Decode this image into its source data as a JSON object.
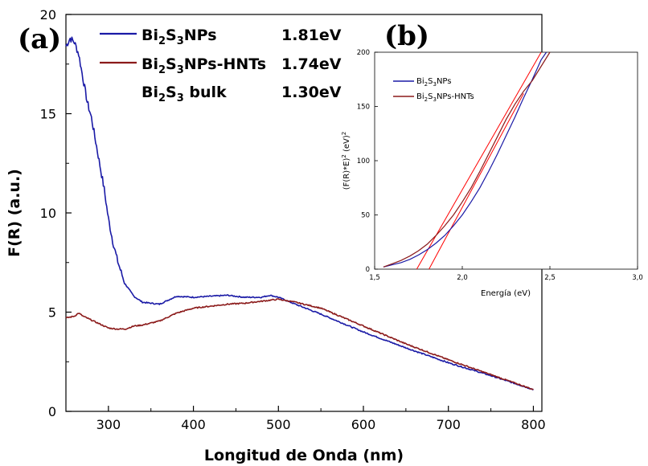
{
  "panel_a_label": "(a)",
  "panel_b_label": "(b)",
  "colors": {
    "nps": "#1a1aa6",
    "hnts": "#8b1a1a",
    "fit": "#ff0000"
  },
  "chart_data": [
    {
      "type": "line",
      "panel": "(a)",
      "xlabel": "Longitud de Onda (nm)",
      "ylabel": "F(R) (a.u.)",
      "xlim": [
        250,
        810
      ],
      "ylim": [
        0,
        20
      ],
      "xticks": [
        300,
        400,
        500,
        600,
        700,
        800
      ],
      "yticks": [
        0,
        5,
        10,
        15,
        20
      ],
      "legend_position": "top",
      "legend": [
        {
          "parts": [
            "Bi",
            "2",
            "S",
            "3",
            "NPs"
          ],
          "value": "1.81eV",
          "line": true
        },
        {
          "parts": [
            "Bi",
            "2",
            "S",
            "3",
            "NPs-HNTs"
          ],
          "value": "1.74eV",
          "line": true
        },
        {
          "parts": [
            "Bi",
            "2",
            "S",
            "3",
            " bulk"
          ],
          "value": "1.30eV",
          "line": false
        }
      ],
      "series": [
        {
          "name": "Bi2S3NPs",
          "x": [
            250,
            255,
            260,
            265,
            270,
            275,
            280,
            285,
            290,
            295,
            300,
            305,
            310,
            315,
            320,
            330,
            340,
            350,
            360,
            370,
            380,
            400,
            420,
            440,
            460,
            480,
            490,
            500,
            520,
            550,
            600,
            650,
            700,
            750,
            800
          ],
          "y": [
            18.4,
            18.8,
            18.6,
            18.0,
            16.8,
            15.6,
            14.8,
            13.6,
            12.4,
            11.2,
            9.7,
            8.6,
            7.7,
            7.0,
            6.4,
            5.8,
            5.5,
            5.45,
            5.4,
            5.6,
            5.8,
            5.75,
            5.8,
            5.85,
            5.75,
            5.75,
            5.85,
            5.75,
            5.4,
            4.9,
            4.0,
            3.2,
            2.45,
            1.8,
            1.1
          ]
        },
        {
          "name": "Bi2S3NPs-HNTs",
          "x": [
            250,
            260,
            265,
            270,
            280,
            290,
            300,
            310,
            320,
            330,
            340,
            350,
            360,
            380,
            400,
            420,
            440,
            460,
            480,
            500,
            520,
            550,
            600,
            650,
            700,
            750,
            800
          ],
          "y": [
            4.7,
            4.8,
            4.95,
            4.8,
            4.6,
            4.4,
            4.2,
            4.15,
            4.15,
            4.3,
            4.35,
            4.45,
            4.55,
            4.95,
            5.2,
            5.3,
            5.4,
            5.45,
            5.55,
            5.65,
            5.5,
            5.2,
            4.3,
            3.4,
            2.6,
            1.85,
            1.1
          ]
        }
      ]
    },
    {
      "type": "line",
      "panel": "(b)",
      "xlabel": "Energía (eV)",
      "ylabel": [
        "(F(R)*E)",
        "2",
        " (eV)",
        "2"
      ],
      "xlim": [
        1.5,
        3.0
      ],
      "ylim": [
        0,
        200
      ],
      "xticks": [
        "1,5",
        "2,0",
        "2,5",
        "3,0"
      ],
      "xtick_values": [
        1.5,
        2.0,
        2.5,
        3.0
      ],
      "yticks": [
        0,
        50,
        100,
        150,
        200
      ],
      "legend_position": "top-left",
      "legend": [
        {
          "parts": [
            "Bi",
            "2",
            "S",
            "3",
            "NPs"
          ]
        },
        {
          "parts": [
            "Bi",
            "2",
            "S",
            "3",
            "NPs-HNTs"
          ]
        }
      ],
      "series": [
        {
          "name": "Bi2S3NPs",
          "x": [
            1.55,
            1.6,
            1.65,
            1.7,
            1.75,
            1.8,
            1.85,
            1.9,
            1.95,
            2.0,
            2.05,
            2.1,
            2.15,
            2.2,
            2.25,
            2.3,
            2.35,
            2.4,
            2.45,
            2.48
          ],
          "y": [
            2,
            4,
            6,
            9,
            13,
            18,
            24,
            31,
            40,
            50,
            62,
            75,
            90,
            106,
            123,
            140,
            158,
            175,
            193,
            202
          ]
        },
        {
          "name": "Bi2S3NPs-HNTs",
          "x": [
            1.55,
            1.6,
            1.65,
            1.7,
            1.75,
            1.8,
            1.85,
            1.9,
            1.95,
            2.0,
            2.05,
            2.1,
            2.15,
            2.2,
            2.25,
            2.3,
            2.35,
            2.4,
            2.45,
            2.5
          ],
          "y": [
            2,
            5,
            8,
            12,
            17,
            23,
            31,
            40,
            50,
            62,
            75,
            90,
            106,
            122,
            138,
            152,
            164,
            174,
            187,
            200
          ]
        }
      ],
      "fit_lines": [
        {
          "x": [
            1.81,
            2.35
          ],
          "y": [
            0,
            162
          ]
        },
        {
          "x": [
            1.74,
            2.45
          ],
          "y": [
            0,
            200
          ]
        }
      ]
    }
  ]
}
